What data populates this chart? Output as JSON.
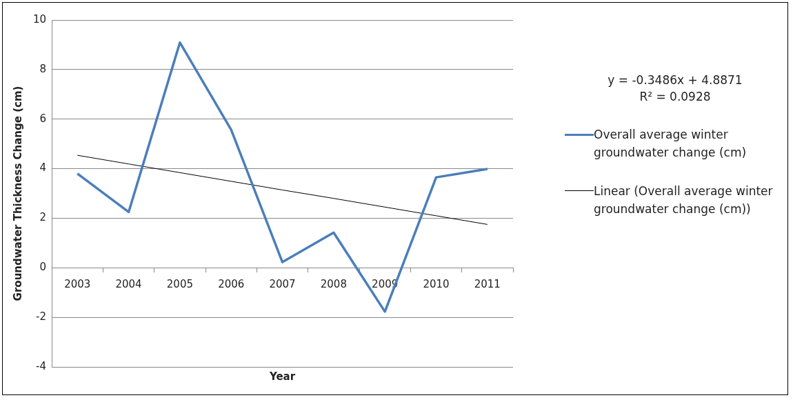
{
  "chart_data": {
    "type": "line",
    "xlabel": "Year",
    "ylabel": "Groundwater Thickness Change (cm)",
    "categories": [
      "2003",
      "2004",
      "2005",
      "2006",
      "2007",
      "2008",
      "2009",
      "2010",
      "2011"
    ],
    "series": [
      {
        "name": "Overall average winter groundwater change (cm)",
        "color": "#4a7ebb",
        "values": [
          3.8,
          2.25,
          9.09,
          5.57,
          0.23,
          1.42,
          -1.77,
          3.65,
          3.99
        ]
      },
      {
        "name": "Linear (Overall average winter groundwater change (cm))",
        "color": "#000000",
        "values": [
          4.54,
          4.19,
          3.84,
          3.49,
          3.14,
          2.8,
          2.45,
          2.1,
          1.75
        ]
      }
    ],
    "annotations": [
      "y = -0.3486x + 4.8871",
      "R² = 0.0928"
    ],
    "ylim": [
      -4,
      10
    ],
    "yticks": [
      -4,
      -2,
      0,
      2,
      4,
      6,
      8,
      10
    ],
    "grid": "y",
    "legend": "right",
    "marker": "none",
    "line_style": "solid"
  }
}
